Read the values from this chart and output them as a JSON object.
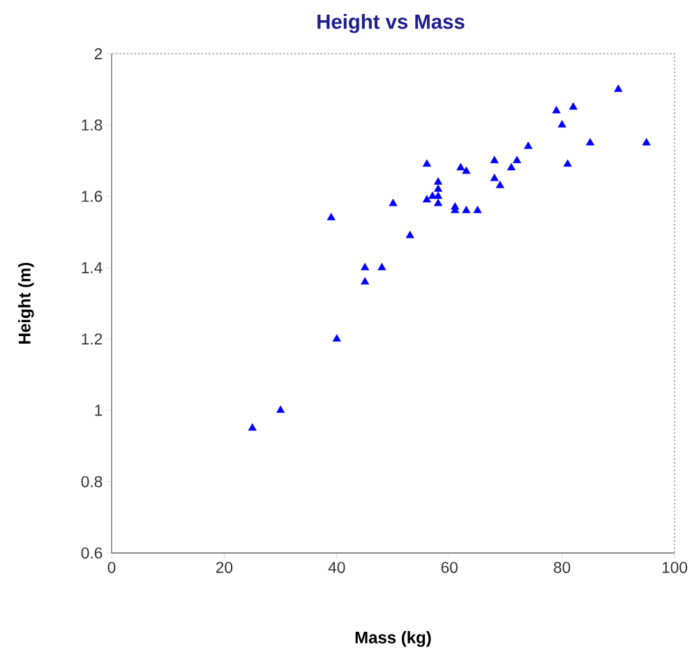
{
  "chart_data": {
    "type": "scatter",
    "title": "Height vs Mass",
    "xlabel": "Mass (kg)",
    "ylabel": "Height (m)",
    "xlim": [
      0,
      100
    ],
    "xticks": [
      0,
      20,
      40,
      60,
      80,
      100
    ],
    "ylim": [
      0.6,
      2
    ],
    "yticks": [
      0.6,
      0.8,
      1,
      1.2,
      1.4,
      1.6,
      1.8,
      2
    ],
    "grid": false,
    "marker": "triangle",
    "series": [
      {
        "color": "#0000ff",
        "x": [
          25,
          30,
          40,
          39,
          45,
          45,
          48,
          50,
          53,
          56,
          56,
          57,
          58,
          58,
          58,
          58,
          61,
          61,
          62,
          63,
          63,
          65,
          68,
          68,
          69,
          71,
          72,
          74,
          79,
          80,
          81,
          82,
          85,
          90,
          95
        ],
        "values": [
          0.95,
          1.0,
          1.2,
          1.54,
          1.4,
          1.36,
          1.4,
          1.58,
          1.49,
          1.69,
          1.59,
          1.6,
          1.64,
          1.62,
          1.6,
          1.58,
          1.56,
          1.57,
          1.68,
          1.67,
          1.56,
          1.56,
          1.7,
          1.65,
          1.63,
          1.68,
          1.7,
          1.74,
          1.84,
          1.8,
          1.69,
          1.85,
          1.75,
          1.9,
          1.75
        ]
      }
    ]
  }
}
